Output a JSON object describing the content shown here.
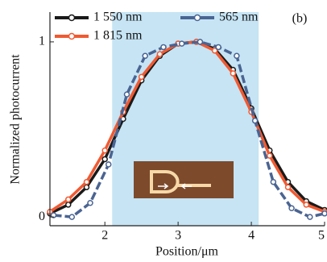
{
  "chart_data": {
    "type": "line",
    "label": "(b)",
    "xlabel": "Position/μm",
    "ylabel": "Normalized photocurrent",
    "xlim": [
      1.25,
      5
    ],
    "xticks": [
      2,
      3,
      4,
      5
    ],
    "ylim": [
      -0.05,
      1.17
    ],
    "yticks": [
      0,
      1
    ],
    "shaded_region": {
      "xlim": [
        2.1,
        4.1
      ],
      "color": "#c6e4f4"
    },
    "series": [
      {
        "name": "1 550 nm",
        "color": "#1a1a1a",
        "x": [
          1.25,
          1.5,
          1.75,
          2.0,
          2.25,
          2.5,
          2.75,
          3.0,
          3.25,
          3.5,
          3.75,
          4.0,
          4.25,
          4.5,
          4.75,
          5.0
        ],
        "values": [
          0.02,
          0.07,
          0.17,
          0.33,
          0.56,
          0.78,
          0.92,
          0.99,
          1.0,
          0.96,
          0.84,
          0.62,
          0.38,
          0.2,
          0.09,
          0.04
        ]
      },
      {
        "name": "1 815 nm",
        "color": "#f05a32",
        "x": [
          1.25,
          1.5,
          1.75,
          2.0,
          2.25,
          2.5,
          2.75,
          3.0,
          3.25,
          3.5,
          3.75,
          4.0,
          4.25,
          4.5,
          4.75,
          5.0
        ],
        "values": [
          0.03,
          0.1,
          0.2,
          0.38,
          0.6,
          0.8,
          0.93,
          0.99,
          1.0,
          0.95,
          0.82,
          0.6,
          0.35,
          0.17,
          0.07,
          0.03
        ]
      },
      {
        "name": "565 nm",
        "color": "#4a6492",
        "x": [
          1.3,
          1.55,
          1.8,
          2.05,
          2.3,
          2.55,
          2.8,
          3.05,
          3.3,
          3.55,
          3.8,
          4.05,
          4.3,
          4.55,
          4.8,
          5.0
        ],
        "values": [
          0.01,
          0.0,
          0.08,
          0.3,
          0.7,
          0.92,
          0.97,
          0.99,
          1.0,
          0.97,
          0.92,
          0.55,
          0.2,
          0.05,
          0.0,
          0.02
        ]
      }
    ]
  }
}
